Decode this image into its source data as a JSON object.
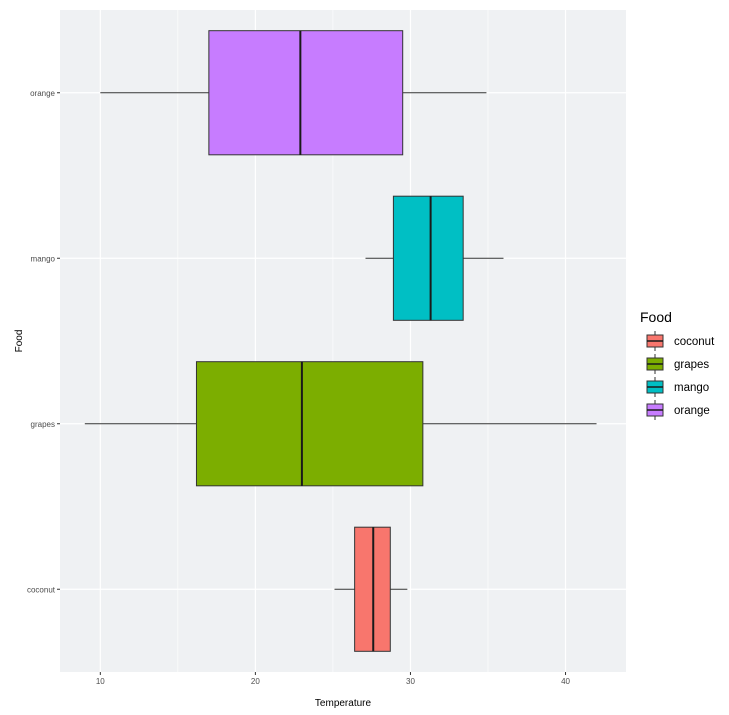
{
  "chart_data": {
    "type": "boxplot",
    "orientation": "horizontal",
    "xlabel": "Temperature",
    "ylabel": "Food",
    "xlim": [
      7.4,
      43.9
    ],
    "x_ticks": [
      10,
      20,
      30,
      40
    ],
    "x_minor_ticks": [
      15,
      25,
      35
    ],
    "categories": [
      "coconut",
      "grapes",
      "mango",
      "orange"
    ],
    "grid": true,
    "series": [
      {
        "name": "coconut",
        "min": 25.1,
        "q1": 26.4,
        "median": 27.6,
        "q3": 28.7,
        "max": 29.8,
        "color": "#F8766D"
      },
      {
        "name": "grapes",
        "min": 9.0,
        "q1": 16.2,
        "median": 23.0,
        "q3": 30.8,
        "max": 42.0,
        "color": "#7CAE00"
      },
      {
        "name": "mango",
        "min": 27.1,
        "q1": 28.9,
        "median": 31.3,
        "q3": 33.4,
        "max": 36.0,
        "color": "#00BFC4"
      },
      {
        "name": "orange",
        "min": 10.0,
        "q1": 17.0,
        "median": 22.9,
        "q3": 29.5,
        "max": 34.9,
        "color": "#C77CFF"
      }
    ],
    "legend": {
      "title": "Food",
      "position": "right",
      "items": [
        "coconut",
        "grapes",
        "mango",
        "orange"
      ]
    },
    "panel_color": "#EFF1F3",
    "gridline_color": "#FFFFFF"
  }
}
